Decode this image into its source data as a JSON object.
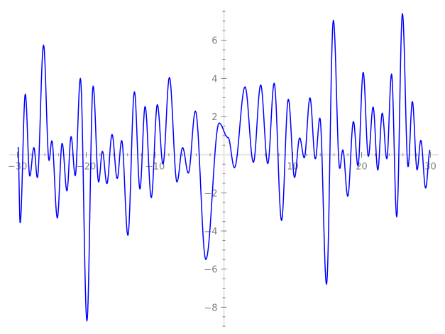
{
  "chart_data": {
    "type": "line",
    "title": "",
    "xlabel": "",
    "ylabel": "",
    "xlim": [
      -31.2,
      31.2
    ],
    "ylim": [
      -9.0,
      7.65
    ],
    "grid": false,
    "x_ticks": [
      -30,
      -20,
      -10,
      10,
      20,
      30
    ],
    "x_tick_labels": [
      "−30",
      "−20",
      "−10",
      "10",
      "20",
      "30"
    ],
    "x_minor_step": 2,
    "y_ticks": [
      -8,
      -6,
      -4,
      -2,
      2,
      4,
      6
    ],
    "y_tick_labels": [
      "−8",
      "−6",
      "−4",
      "−2",
      "2",
      "4",
      "6"
    ],
    "y_minor_step": 0.5,
    "series_color": "#0000ff",
    "axis_color": "#808080",
    "series": [
      {
        "points": [
          [
            -29.9,
            0.4
          ],
          [
            -29.6,
            -3.57
          ],
          [
            -28.85,
            3.18
          ],
          [
            -28.2,
            -1.12
          ],
          [
            -27.6,
            0.37
          ],
          [
            -27.1,
            -1.2
          ],
          [
            -26.2,
            5.75
          ],
          [
            -25.4,
            -0.3
          ],
          [
            -25.0,
            0.73
          ],
          [
            -24.2,
            -3.32
          ],
          [
            -23.5,
            0.6
          ],
          [
            -22.8,
            -1.9
          ],
          [
            -22.2,
            0.95
          ],
          [
            -21.6,
            -1.1
          ],
          [
            -20.85,
            4.0
          ],
          [
            -19.9,
            -8.72
          ],
          [
            -19.0,
            3.6
          ],
          [
            -18.2,
            -1.43
          ],
          [
            -17.65,
            0.18
          ],
          [
            -17.0,
            -1.52
          ],
          [
            -16.25,
            1.06
          ],
          [
            -15.5,
            -1.25
          ],
          [
            -14.85,
            0.74
          ],
          [
            -13.95,
            -4.23
          ],
          [
            -13.0,
            3.3
          ],
          [
            -12.2,
            -1.8
          ],
          [
            -11.45,
            2.53
          ],
          [
            -10.55,
            -2.25
          ],
          [
            -9.67,
            2.63
          ],
          [
            -8.85,
            -0.49
          ],
          [
            -7.92,
            4.05
          ],
          [
            -6.82,
            -1.43
          ],
          [
            -6.0,
            0.37
          ],
          [
            -5.17,
            -0.96
          ],
          [
            -4.14,
            2.29
          ],
          [
            -2.63,
            -5.5
          ],
          [
            -0.7,
            1.66
          ],
          [
            0.6,
            0.9
          ],
          [
            1.53,
            -0.68
          ],
          [
            3.07,
            3.56
          ],
          [
            4.28,
            -0.4
          ],
          [
            5.34,
            3.66
          ],
          [
            6.37,
            -0.47
          ],
          [
            7.3,
            3.75
          ],
          [
            8.37,
            -3.45
          ],
          [
            9.36,
            2.91
          ],
          [
            10.26,
            -1.19
          ],
          [
            11.0,
            0.88
          ],
          [
            11.67,
            -0.16
          ],
          [
            12.5,
            2.98
          ],
          [
            13.28,
            -0.22
          ],
          [
            13.94,
            1.92
          ],
          [
            14.9,
            -6.8
          ],
          [
            15.9,
            7.05
          ],
          [
            16.82,
            -0.72
          ],
          [
            17.27,
            0.25
          ],
          [
            17.99,
            -2.18
          ],
          [
            18.81,
            1.74
          ],
          [
            19.47,
            -0.59
          ],
          [
            20.23,
            4.32
          ],
          [
            20.98,
            -0.09
          ],
          [
            21.67,
            2.5
          ],
          [
            22.35,
            -0.8
          ],
          [
            23.0,
            2.18
          ],
          [
            23.66,
            -0.22
          ],
          [
            24.35,
            4.23
          ],
          [
            25.1,
            -3.26
          ],
          [
            25.93,
            7.4
          ],
          [
            26.75,
            -0.63
          ],
          [
            27.37,
            2.79
          ],
          [
            28.06,
            -0.79
          ],
          [
            28.6,
            0.75
          ],
          [
            29.3,
            -1.75
          ],
          [
            29.95,
            0.25
          ]
        ]
      }
    ]
  }
}
